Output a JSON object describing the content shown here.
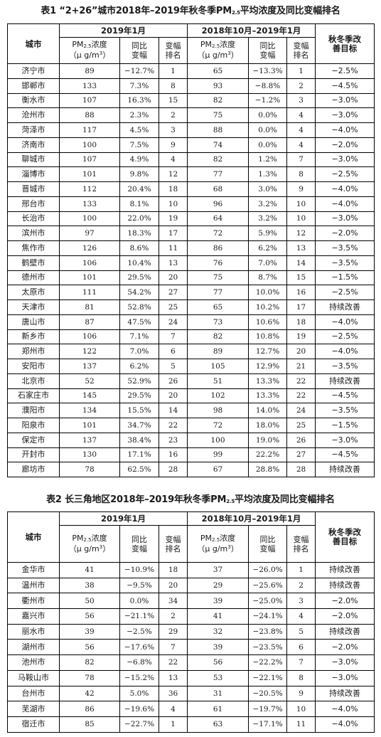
{
  "table1": {
    "caption": "表1 “2+26”城市2018年–2019年秋冬季PM2.5平均浓度及同比变幅排名",
    "caption_parts": {
      "pre": "表1 “2+26”城市2018年–2019年秋冬季PM",
      "sub": "2.5",
      "post": "平均浓度及同比变幅排名"
    },
    "headers": {
      "city": "城市",
      "period1": "2019年1月",
      "period2": "2018年10月–2019年1月",
      "goal": "秋冬季改善目标",
      "pm_pre": "PM",
      "pm_sub": "2.5",
      "pm_post": "浓度",
      "unit_pre": "（μ g/m",
      "unit_sup": "3",
      "unit_post": "）",
      "change": "同比变幅",
      "rank": "变幅排名"
    },
    "rows": [
      [
        "济宁市",
        "89",
        "−12.7%",
        "1",
        "65",
        "−13.3%",
        "1",
        "−2.5%"
      ],
      [
        "邯郸市",
        "133",
        "7.3%",
        "8",
        "93",
        "−8.8%",
        "2",
        "−4.5%"
      ],
      [
        "衡水市",
        "107",
        "16.3%",
        "15",
        "82",
        "−1.2%",
        "3",
        "−3.0%"
      ],
      [
        "沧州市",
        "88",
        "2.3%",
        "2",
        "75",
        "0.0%",
        "4",
        "−3.0%"
      ],
      [
        "菏泽市",
        "117",
        "4.5%",
        "3",
        "88",
        "0.0%",
        "4",
        "−4.0%"
      ],
      [
        "济南市",
        "100",
        "7.5%",
        "9",
        "74",
        "0.0%",
        "4",
        "−2.0%"
      ],
      [
        "聊城市",
        "107",
        "4.9%",
        "4",
        "82",
        "1.2%",
        "7",
        "−3.0%"
      ],
      [
        "淄博市",
        "101",
        "9.8%",
        "12",
        "77",
        "1.3%",
        "8",
        "−2.5%"
      ],
      [
        "晋城市",
        "112",
        "20.4%",
        "18",
        "68",
        "3.0%",
        "9",
        "−4.0%"
      ],
      [
        "邢台市",
        "133",
        "8.1%",
        "10",
        "96",
        "3.2%",
        "10",
        "−4.0%"
      ],
      [
        "长治市",
        "100",
        "22.0%",
        "19",
        "64",
        "3.2%",
        "10",
        "−3.0%"
      ],
      [
        "滨州市",
        "97",
        "18.3%",
        "17",
        "72",
        "5.9%",
        "12",
        "−2.0%"
      ],
      [
        "焦作市",
        "126",
        "8.6%",
        "11",
        "86",
        "6.2%",
        "13",
        "−3.5%"
      ],
      [
        "鹤壁市",
        "106",
        "10.4%",
        "13",
        "76",
        "7.0%",
        "14",
        "−3.5%"
      ],
      [
        "德州市",
        "101",
        "29.5%",
        "20",
        "75",
        "8.7%",
        "15",
        "−1.5%"
      ],
      [
        "太原市",
        "111",
        "54.2%",
        "27",
        "77",
        "10.0%",
        "16",
        "−2.5%"
      ],
      [
        "天津市",
        "81",
        "52.8%",
        "25",
        "65",
        "10.2%",
        "17",
        "持续改善"
      ],
      [
        "唐山市",
        "87",
        "47.5%",
        "24",
        "73",
        "10.6%",
        "18",
        "−4.0%"
      ],
      [
        "新乡市",
        "106",
        "7.1%",
        "7",
        "82",
        "10.8%",
        "19",
        "−2.5%"
      ],
      [
        "郑州市",
        "122",
        "7.0%",
        "6",
        "89",
        "12.7%",
        "20",
        "−4.0%"
      ],
      [
        "安阳市",
        "137",
        "6.2%",
        "5",
        "105",
        "12.9%",
        "21",
        "−3.5%"
      ],
      [
        "北京市",
        "52",
        "52.9%",
        "26",
        "51",
        "13.3%",
        "22",
        "持续改善"
      ],
      [
        "石家庄市",
        "145",
        "29.5%",
        "20",
        "102",
        "13.3%",
        "22",
        "−4.5%"
      ],
      [
        "濮阳市",
        "134",
        "15.5%",
        "14",
        "98",
        "14.0%",
        "24",
        "−3.5%"
      ],
      [
        "阳泉市",
        "101",
        "34.7%",
        "22",
        "72",
        "18.0%",
        "25",
        "−1.5%"
      ],
      [
        "保定市",
        "137",
        "38.4%",
        "23",
        "100",
        "19.0%",
        "26",
        "−3.0%"
      ],
      [
        "开封市",
        "130",
        "17.1%",
        "16",
        "99",
        "22.2%",
        "27",
        "−4.5%"
      ],
      [
        "廊坊市",
        "78",
        "62.5%",
        "28",
        "67",
        "28.8%",
        "28",
        "持续改善"
      ]
    ]
  },
  "table2": {
    "caption": "表2 长三角地区2018年–2019年秋冬季PM2.5平均浓度及同比变幅排名",
    "caption_parts": {
      "pre": "表2 长三角地区2018年–2019年秋冬季PM",
      "sub": "2.5",
      "post": "平均浓度及同比变幅排名"
    },
    "rows": [
      [
        "金华市",
        "41",
        "−10.9%",
        "18",
        "37",
        "−26.0%",
        "1",
        "持续改善"
      ],
      [
        "温州市",
        "38",
        "−9.5%",
        "20",
        "29",
        "−25.6%",
        "2",
        "持续改善"
      ],
      [
        "衢州市",
        "50",
        "0.0%",
        "34",
        "39",
        "−25.0%",
        "3",
        "−2.0%"
      ],
      [
        "嘉兴市",
        "56",
        "−21.1%",
        "2",
        "41",
        "−24.1%",
        "4",
        "−2.0%"
      ],
      [
        "丽水市",
        "39",
        "−2.5%",
        "29",
        "32",
        "−23.8%",
        "5",
        "持续改善"
      ],
      [
        "湖州市",
        "56",
        "−17.6%",
        "7",
        "39",
        "−23.5%",
        "6",
        "−2.0%"
      ],
      [
        "池州市",
        "82",
        "−6.8%",
        "22",
        "56",
        "−22.2%",
        "7",
        "−3.0%"
      ],
      [
        "马鞍山市",
        "78",
        "−15.2%",
        "13",
        "53",
        "−22.1%",
        "8",
        "−3.0%"
      ],
      [
        "台州市",
        "42",
        "5.0%",
        "36",
        "31",
        "−20.5%",
        "9",
        "持续改善"
      ],
      [
        "芜湖市",
        "86",
        "−19.6%",
        "4",
        "61",
        "−19.7%",
        "10",
        "−4.0%"
      ],
      [
        "宿迁市",
        "85",
        "−22.7%",
        "1",
        "63",
        "−17.1%",
        "11",
        "−4.0%"
      ]
    ]
  }
}
